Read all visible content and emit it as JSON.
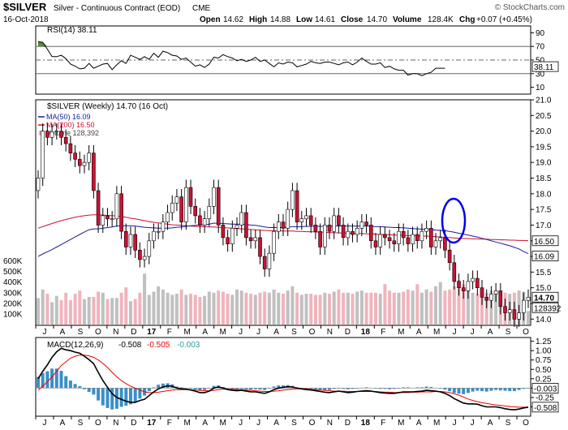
{
  "header": {
    "symbol": "$SILVER",
    "name": "Silver - Continuous Contract (EOD)",
    "exchange": "CME",
    "date": "16-Oct-2018",
    "open_label": "Open",
    "open": "14.62",
    "high_label": "High",
    "high": "14.88",
    "low_label": "Low",
    "low": "14.61",
    "close_label": "Close",
    "close": "14.70",
    "volume_label": "Volume",
    "volume": "128.4K",
    "chg_label": "Chg",
    "chg": "+0.07 (+0.45%)",
    "watermark": "© StockCharts.com"
  },
  "colors": {
    "up": "#ffffff",
    "down": "#cc1133",
    "ma50": "#1a1a9c",
    "ma200": "#cc1133",
    "vol_up": "#c0c0c0",
    "vol_down": "#f0b4bc",
    "rsi": "#000000",
    "macd": "#000000",
    "signal": "#ee0000",
    "hist": "#3a8fc8",
    "oval": "#0000ee"
  },
  "chart_data": [
    {
      "type": "line",
      "panel": "rsi",
      "title": "RSI(14) 38.11",
      "ylim": [
        0,
        100
      ],
      "y_ticks": [
        "90",
        "70",
        "50",
        "30",
        "10"
      ],
      "reference_lines": [
        70,
        50,
        30
      ],
      "last_value_label": "38.11",
      "values": [
        77,
        76,
        66,
        55,
        55,
        57,
        52,
        44,
        41,
        37,
        38,
        45,
        38,
        41,
        44,
        45,
        36,
        43,
        49,
        45,
        57,
        54,
        51,
        55,
        51,
        60,
        54,
        63,
        61,
        57,
        56,
        51,
        53,
        47,
        41,
        43,
        39,
        44,
        54,
        53,
        58,
        55,
        53,
        49,
        51,
        48,
        50,
        54,
        48,
        50,
        45,
        40,
        46,
        44,
        47,
        46,
        40,
        42,
        44,
        48,
        46,
        45,
        47,
        47,
        45,
        43,
        46,
        47,
        43,
        47,
        53,
        48,
        44,
        44,
        46,
        39,
        41,
        37,
        35,
        35,
        28,
        30,
        30,
        27,
        30,
        32,
        38,
        38,
        38
      ]
    },
    {
      "type": "candlestick",
      "panel": "price",
      "title": "$SILVER (Weekly) 14.70 (16 Oct)",
      "legend": [
        "MA(50) 16.09",
        "MA(200) 16.50",
        "Volume 128,392"
      ],
      "ylim": [
        13.8,
        21.0
      ],
      "y_ticks": [
        "21.0",
        "20.5",
        "20.0",
        "19.5",
        "19.0",
        "18.5",
        "18.0",
        "17.5",
        "17.0",
        "16.5",
        "16.0",
        "15.5",
        "15.0",
        "14.5",
        "14.0"
      ],
      "x_labels": [
        "J",
        "A",
        "S",
        "O",
        "N",
        "D",
        "17",
        "F",
        "M",
        "A",
        "M",
        "J",
        "J",
        "A",
        "S",
        "O",
        "N",
        "D",
        "18",
        "F",
        "M",
        "A",
        "M",
        "J",
        "J",
        "A",
        "S",
        "O"
      ],
      "last_value_labels": [
        "16.50",
        "16.09",
        "14.70"
      ],
      "close": [
        18.5,
        20.0,
        19.8,
        19.98,
        20.0,
        19.8,
        19.6,
        19.3,
        19.1,
        18.9,
        19.0,
        19.3,
        18.1,
        17.0,
        17.3,
        17.2,
        17.2,
        18.0,
        16.8,
        16.3,
        16.7,
        16.2,
        15.9,
        16.0,
        16.5,
        16.8,
        16.8,
        17.1,
        17.4,
        17.7,
        17.9,
        17.1,
        18.2,
        17.6,
        17.3,
        17.0,
        17.2,
        17.6,
        18.2,
        17.0,
        16.6,
        16.4,
        16.9,
        17.0,
        17.4,
        16.6,
        16.5,
        16.6,
        16.0,
        15.6,
        16.1,
        16.8,
        17.1,
        16.9,
        17.5,
        18.1,
        17.1,
        17.2,
        17.3,
        17.0,
        16.8,
        16.3,
        17.0,
        16.8,
        17.3,
        17.0,
        16.6,
        16.8,
        16.7,
        16.9,
        17.1,
        17.0,
        16.5,
        16.3,
        16.7,
        16.6,
        16.5,
        16.4,
        16.8,
        16.6,
        16.4,
        16.7,
        16.5,
        16.8,
        16.9,
        16.3,
        16.5,
        16.6,
        16.2,
        15.8,
        15.2,
        15.0,
        14.9,
        15.2,
        15.3,
        15.0,
        14.7,
        14.6,
        14.8,
        14.9,
        14.4,
        14.2,
        14.3,
        14.0,
        14.2,
        14.6,
        14.7
      ],
      "ma50": [
        16.0,
        16.08,
        16.15,
        16.22,
        16.3,
        16.38,
        16.46,
        16.54,
        16.62,
        16.7,
        16.78,
        16.85,
        16.88,
        16.88,
        16.9,
        16.92,
        16.94,
        16.97,
        16.98,
        16.98,
        16.98,
        16.97,
        16.95,
        16.93,
        16.92,
        16.91,
        16.9,
        16.9,
        16.9,
        16.91,
        16.93,
        16.94,
        16.96,
        16.98,
        16.99,
        17.0,
        17.01,
        17.03,
        17.06,
        17.06,
        17.05,
        17.04,
        17.03,
        17.03,
        17.03,
        17.02,
        17.0,
        16.99,
        16.97,
        16.94,
        16.92,
        16.92,
        16.92,
        16.92,
        16.93,
        16.95,
        16.95,
        16.95,
        16.96,
        16.96,
        16.96,
        16.96,
        16.96,
        16.96,
        16.97,
        16.97,
        16.97,
        16.97,
        16.97,
        16.97,
        16.97,
        16.97,
        16.96,
        16.95,
        16.95,
        16.94,
        16.93,
        16.92,
        16.92,
        16.91,
        16.9,
        16.89,
        16.88,
        16.87,
        16.86,
        16.85,
        16.84,
        16.83,
        16.82,
        16.8,
        16.77,
        16.74,
        16.71,
        16.68,
        16.65,
        16.62,
        16.58,
        16.54,
        16.5,
        16.46,
        16.42,
        16.38,
        16.34,
        16.29,
        16.24,
        16.16,
        16.09
      ],
      "ma200": [
        16.9,
        16.95,
        17.0,
        17.05,
        17.1,
        17.14,
        17.18,
        17.22,
        17.25,
        17.28,
        17.3,
        17.32,
        17.33,
        17.33,
        17.32,
        17.31,
        17.3,
        17.29,
        17.27,
        17.25,
        17.22,
        17.2,
        17.17,
        17.14,
        17.11,
        17.09,
        17.07,
        17.05,
        17.03,
        17.01,
        17.0,
        16.99,
        16.98,
        16.97,
        16.96,
        16.95,
        16.95,
        16.94,
        16.94,
        16.93,
        16.92,
        16.91,
        16.9,
        16.89,
        16.88,
        16.87,
        16.86,
        16.85,
        16.84,
        16.83,
        16.82,
        16.82,
        16.82,
        16.81,
        16.81,
        16.81,
        16.8,
        16.8,
        16.79,
        16.79,
        16.78,
        16.77,
        16.77,
        16.76,
        16.76,
        16.75,
        16.75,
        16.74,
        16.74,
        16.73,
        16.73,
        16.72,
        16.72,
        16.71,
        16.7,
        16.7,
        16.69,
        16.68,
        16.68,
        16.67,
        16.67,
        16.66,
        16.66,
        16.65,
        16.65,
        16.64,
        16.63,
        16.62,
        16.61,
        16.6,
        16.59,
        16.58,
        16.57,
        16.57,
        16.56,
        16.56,
        16.55,
        16.55,
        16.54,
        16.54,
        16.53,
        16.53,
        16.52,
        16.52,
        16.51,
        16.51,
        16.5
      ],
      "volume_y_ticks": [
        "600K",
        "500K",
        "400K",
        "300K",
        "200K",
        "100K"
      ],
      "volume_ylim": [
        0,
        650000
      ],
      "volume_last_label": "128392",
      "volume": [
        250,
        330,
        290,
        210,
        270,
        230,
        300,
        230,
        290,
        320,
        240,
        260,
        260,
        310,
        300,
        240,
        250,
        250,
        300,
        350,
        220,
        240,
        300,
        480,
        280,
        310,
        360,
        330,
        300,
        280,
        290,
        330,
        280,
        290,
        280,
        260,
        270,
        310,
        300,
        320,
        310,
        290,
        280,
        330,
        320,
        300,
        290,
        280,
        300,
        310,
        300,
        330,
        300,
        290,
        320,
        360,
        300,
        280,
        290,
        290,
        280,
        280,
        300,
        290,
        310,
        330,
        300,
        300,
        290,
        310,
        320,
        300,
        300,
        300,
        290,
        380,
        320,
        300,
        300,
        310,
        330,
        320,
        380,
        300,
        330,
        310,
        360,
        400,
        320,
        330,
        360,
        420,
        380,
        330,
        300,
        290,
        260,
        300,
        320,
        300,
        280,
        300,
        290,
        300,
        320,
        310,
        128
      ]
    },
    {
      "type": "line",
      "panel": "macd",
      "title": "MACD(12,26,9) -0.508, -0.505, -0.003",
      "title_main": "MACD(12,26,9)",
      "title_values": [
        "-0.508",
        "-0.505",
        "-0.003"
      ],
      "ylim": [
        -0.75,
        1.35
      ],
      "y_ticks": [
        "1.25",
        "1.00",
        "0.75",
        "0.50",
        "0.25",
        "0.00",
        "-0.25",
        "-0.50"
      ],
      "last_value_labels": [
        "-0.003",
        "-0.508"
      ],
      "macd": [
        0.25,
        0.45,
        0.62,
        0.82,
        0.97,
        1.06,
        1.02,
        1.0,
        0.96,
        0.93,
        0.85,
        0.76,
        0.65,
        0.42,
        0.2,
        0.02,
        -0.15,
        -0.25,
        -0.3,
        -0.35,
        -0.38,
        -0.38,
        -0.33,
        -0.3,
        -0.2,
        -0.1,
        -0.02,
        0.03,
        0.06,
        0.05,
        0.0,
        -0.02,
        -0.03,
        -0.05,
        -0.08,
        -0.12,
        -0.12,
        -0.08,
        0.0,
        0.03,
        0.0,
        -0.04,
        -0.06,
        -0.07,
        -0.06,
        -0.08,
        -0.1,
        -0.1,
        -0.12,
        -0.14,
        -0.1,
        -0.04,
        0.0,
        0.02,
        0.04,
        0.03,
        0.0,
        -0.02,
        -0.04,
        -0.05,
        -0.07,
        -0.09,
        -0.11,
        -0.12,
        -0.1,
        -0.08,
        -0.1,
        -0.12,
        -0.11,
        -0.09,
        -0.08,
        -0.07,
        -0.08,
        -0.1,
        -0.12,
        -0.13,
        -0.14,
        -0.14,
        -0.12,
        -0.1,
        -0.1,
        -0.1,
        -0.09,
        -0.08,
        -0.06,
        -0.07,
        -0.08,
        -0.1,
        -0.14,
        -0.2,
        -0.28,
        -0.34,
        -0.4,
        -0.42,
        -0.42,
        -0.43,
        -0.47,
        -0.5,
        -0.5,
        -0.5,
        -0.52,
        -0.55,
        -0.57,
        -0.58,
        -0.56,
        -0.53,
        -0.51
      ],
      "signal": [
        -0.05,
        0.05,
        0.17,
        0.3,
        0.45,
        0.6,
        0.7,
        0.8,
        0.85,
        0.88,
        0.88,
        0.86,
        0.82,
        0.75,
        0.66,
        0.55,
        0.42,
        0.3,
        0.2,
        0.12,
        0.05,
        0.0,
        -0.05,
        -0.1,
        -0.12,
        -0.12,
        -0.11,
        -0.09,
        -0.07,
        -0.05,
        -0.04,
        -0.04,
        -0.04,
        -0.04,
        -0.05,
        -0.06,
        -0.07,
        -0.07,
        -0.06,
        -0.04,
        -0.03,
        -0.03,
        -0.03,
        -0.04,
        -0.04,
        -0.05,
        -0.06,
        -0.07,
        -0.08,
        -0.09,
        -0.09,
        -0.08,
        -0.07,
        -0.05,
        -0.04,
        -0.03,
        -0.02,
        -0.02,
        -0.02,
        -0.03,
        -0.04,
        -0.05,
        -0.06,
        -0.07,
        -0.08,
        -0.08,
        -0.08,
        -0.09,
        -0.09,
        -0.09,
        -0.09,
        -0.09,
        -0.09,
        -0.09,
        -0.1,
        -0.11,
        -0.11,
        -0.12,
        -0.12,
        -0.12,
        -0.12,
        -0.11,
        -0.11,
        -0.1,
        -0.1,
        -0.1,
        -0.09,
        -0.09,
        -0.1,
        -0.12,
        -0.15,
        -0.19,
        -0.24,
        -0.29,
        -0.33,
        -0.36,
        -0.39,
        -0.41,
        -0.43,
        -0.45,
        -0.46,
        -0.48,
        -0.49,
        -0.5,
        -0.51,
        -0.51,
        -0.505
      ]
    }
  ]
}
